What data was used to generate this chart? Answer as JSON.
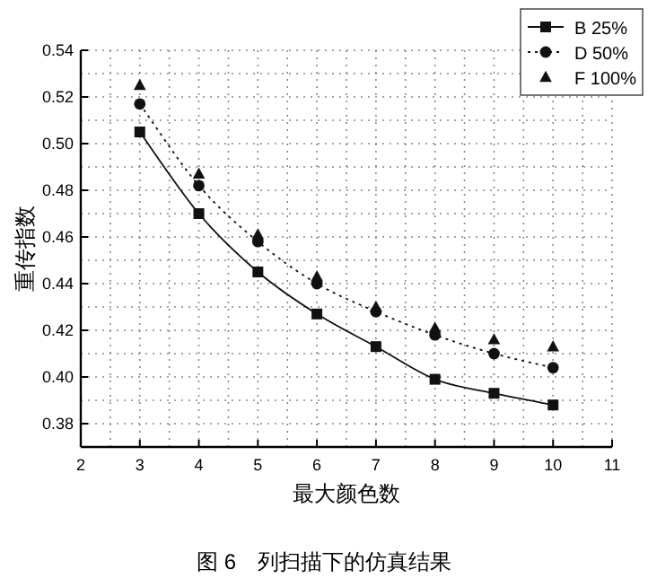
{
  "chart_data": {
    "type": "line",
    "xlabel": "最大颜色数",
    "ylabel": "重传指数",
    "annotations": [
      "图 6　列扫描下的仿真结果"
    ],
    "x": [
      3,
      4,
      5,
      6,
      7,
      8,
      9,
      10
    ],
    "series": [
      {
        "name": "B 25%",
        "color": "#111111",
        "type": "line",
        "marker": "square",
        "line_style": "solid",
        "values": [
          0.505,
          0.47,
          0.445,
          0.427,
          0.413,
          0.399,
          0.393,
          0.388
        ]
      },
      {
        "name": "D 50%",
        "color": "#111111",
        "type": "line",
        "marker": "circle",
        "line_style": "dotted",
        "values": [
          0.517,
          0.482,
          0.458,
          0.44,
          0.428,
          0.418,
          0.41,
          0.404
        ]
      },
      {
        "name": "F 100%",
        "color": "#111111",
        "type": "scatter",
        "marker": "triangle",
        "values": [
          0.525,
          0.487,
          0.461,
          0.443,
          0.43,
          0.421,
          0.416,
          0.413
        ]
      }
    ],
    "xlim": [
      2,
      11
    ],
    "ylim": [
      0.37,
      0.54
    ],
    "xticks": [
      2,
      3,
      4,
      5,
      6,
      7,
      8,
      9,
      10,
      11
    ],
    "yticks": [
      0.38,
      {
        "value": 0.4,
        "label": "0.40"
      },
      0.42,
      0.44,
      0.46,
      0.48,
      {
        "value": 0.5,
        "label": "0.50"
      },
      0.52,
      0.54
    ],
    "grid": true,
    "legend": "top right"
  }
}
